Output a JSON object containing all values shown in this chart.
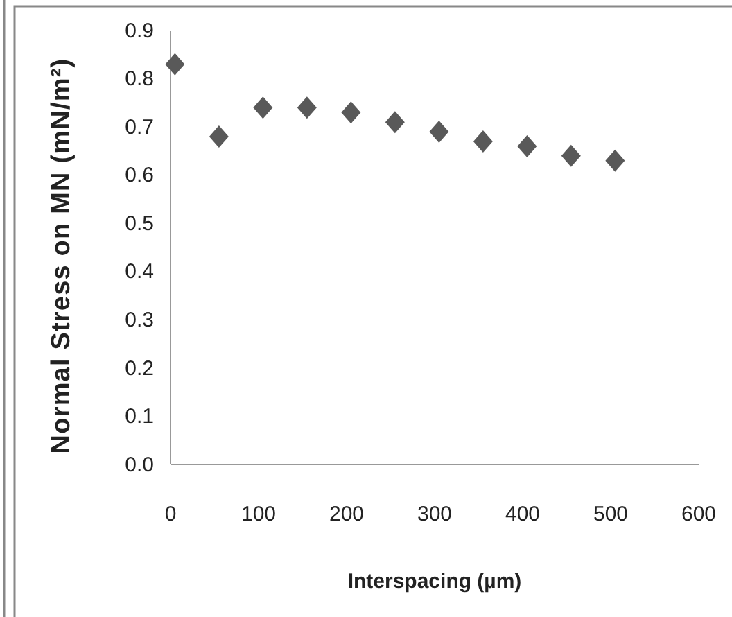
{
  "chart_data": {
    "type": "scatter",
    "xlabel": "Interspacing (µm)",
    "ylabel": "Normal Stress on MN (mN/m²)",
    "x": [
      5,
      55,
      105,
      155,
      205,
      255,
      305,
      355,
      405,
      455,
      505
    ],
    "series": [
      {
        "color": "#595959",
        "values": [
          0.83,
          0.68,
          0.74,
          0.74,
          0.73,
          0.71,
          0.69,
          0.67,
          0.66,
          0.64,
          0.63
        ]
      }
    ],
    "xlim": [
      0,
      600
    ],
    "xticks": [
      0,
      100,
      200,
      300,
      400,
      500,
      600
    ],
    "ylim": [
      0,
      0.9
    ],
    "yticks": [
      {
        "value": 0,
        "label": "0.0"
      },
      {
        "value": 0.1,
        "label": "0.1"
      },
      {
        "value": 0.2,
        "label": "0.2"
      },
      {
        "value": 0.3,
        "label": "0.3"
      },
      {
        "value": 0.4,
        "label": "0.4"
      },
      {
        "value": 0.5,
        "label": "0.5"
      },
      {
        "value": 0.6,
        "label": "0.6"
      },
      {
        "value": 0.7,
        "label": "0.7"
      },
      {
        "value": 0.8,
        "label": "0.8"
      },
      {
        "value": 0.9,
        "label": "0.9"
      }
    ],
    "grid": false,
    "marker": "diamond"
  }
}
